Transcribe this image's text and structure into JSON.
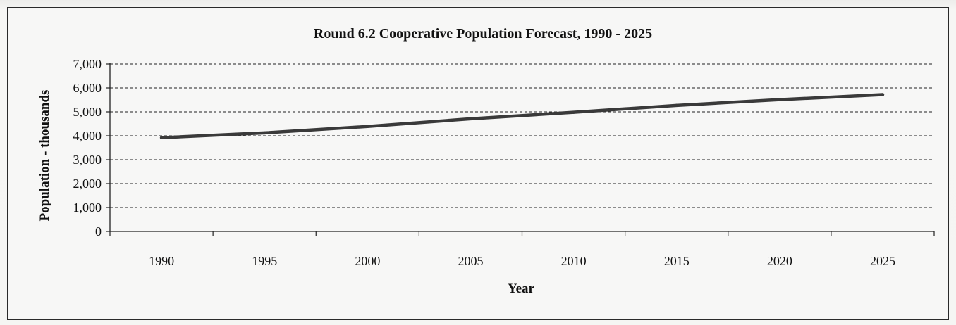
{
  "chart_data": {
    "type": "line",
    "title": "Round 6.2 Cooperative Population Forecast, 1990 - 2025",
    "xlabel": "Year",
    "ylabel": "Population - thousands",
    "categories": [
      "1990",
      "1995",
      "2000",
      "2005",
      "2010",
      "2015",
      "2020",
      "2025"
    ],
    "series": [
      {
        "values": [
          3920,
          4120,
          4390,
          4710,
          4980,
          5270,
          5510,
          5720
        ]
      }
    ],
    "yticks": [
      "0",
      "1,000",
      "2,000",
      "3,000",
      "4,000",
      "5,000",
      "6,000",
      "7,000"
    ],
    "ylim": [
      0,
      7000
    ],
    "grid": true,
    "legend": "none",
    "colors": {
      "line": "#3a3a3a",
      "grid": "#222222",
      "text": "#111111"
    }
  }
}
